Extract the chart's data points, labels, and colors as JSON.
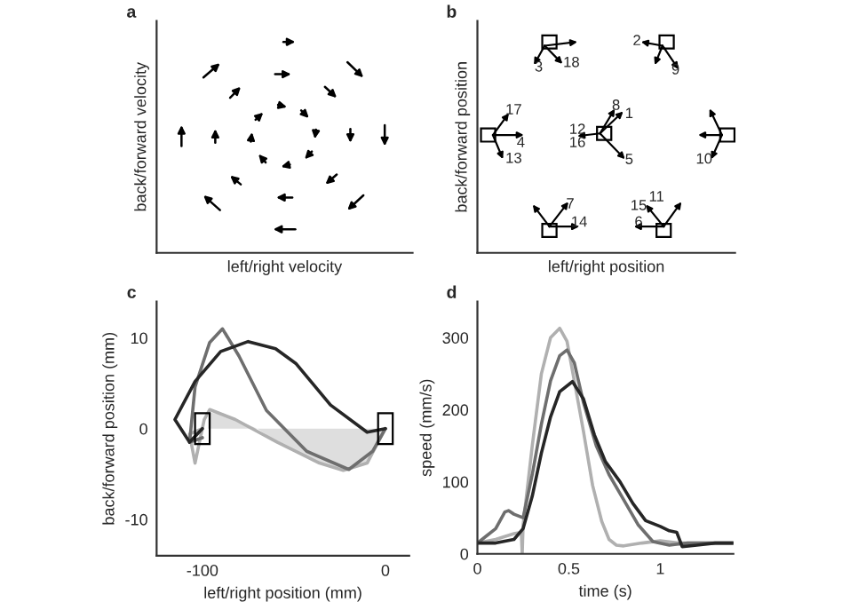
{
  "chart_data": [
    {
      "type": "other",
      "title": "a",
      "xlabel": "left/right velocity",
      "ylabel": "back/forward velocity"
    },
    {
      "type": "other",
      "title": "b",
      "xlabel": "left/right position",
      "ylabel": "back/forward position",
      "annotations": [
        "3",
        "18",
        "2",
        "9",
        "17",
        "4",
        "13",
        "8",
        "1",
        "12",
        "16",
        "5",
        "10",
        "7",
        "14",
        "15",
        "11",
        "6"
      ]
    },
    {
      "type": "line",
      "title": "c",
      "xlabel": "left/right position (mm)",
      "ylabel": "back/forward position (mm)",
      "xlim": [
        -125,
        13
      ],
      "ylim": [
        -14,
        14
      ],
      "xticks": [
        -100,
        0
      ],
      "yticks": [
        -10,
        0,
        10
      ],
      "series": [
        {
          "type": "area",
          "color": "#dedede",
          "x": [
            -97,
            -90,
            -82,
            -70,
            -59,
            -47,
            -36,
            -23,
            -10,
            -4,
            0
          ],
          "values": [
            1.8,
            1.6,
            1,
            0,
            -1.5,
            -2.7,
            -3.8,
            -4.6,
            -3.8,
            -1.5,
            0
          ]
        },
        {
          "color": "#b0b0b0",
          "x": [
            -100,
            -107,
            -104,
            -99,
            -96,
            -82,
            -59,
            -36,
            -23,
            -10,
            -4,
            0
          ],
          "values": [
            0,
            -0.6,
            -3.8,
            1,
            2.1,
            1,
            -1.5,
            -3.8,
            -4.6,
            -3.8,
            -1.5,
            0
          ]
        },
        {
          "color": "#6e6e6e",
          "x": [
            -100,
            -107,
            -104,
            -96,
            -89,
            -80,
            -65,
            -43,
            -20,
            -7,
            0
          ],
          "values": [
            -1,
            -1.5,
            4.6,
            9.5,
            11,
            8,
            2,
            -2.5,
            -4.5,
            -2.5,
            0
          ]
        },
        {
          "color": "#262626",
          "x": [
            -100,
            -107,
            -115,
            -104,
            -90,
            -75,
            -60,
            -49,
            -30,
            -10,
            0
          ],
          "values": [
            0,
            -1.5,
            1,
            5.2,
            8.5,
            9.6,
            8.8,
            7.2,
            2.6,
            -0.4,
            0
          ]
        }
      ]
    },
    {
      "type": "line",
      "title": "d",
      "xlabel": "time (s)",
      "ylabel": "speed (mm/s)",
      "xlim": [
        0,
        1.4
      ],
      "ylim": [
        0,
        350
      ],
      "xticks": [
        0,
        0.5,
        1
      ],
      "yticks": [
        0,
        100,
        200,
        300
      ],
      "series": [
        {
          "color": "#b0b0b0",
          "x": [
            0,
            0.1,
            0.2,
            0.24,
            0.245,
            0.25,
            0.3,
            0.35,
            0.4,
            0.45,
            0.49,
            0.53,
            0.58,
            0.63,
            0.68,
            0.72,
            0.76,
            0.8,
            0.9,
            1.0,
            1.1,
            1.2,
            1.3,
            1.4
          ],
          "values": [
            15,
            20,
            28,
            30,
            0,
            40,
            150,
            250,
            300,
            313,
            295,
            240,
            170,
            95,
            45,
            20,
            12,
            11,
            15,
            18,
            15,
            15,
            15,
            15
          ]
        },
        {
          "color": "#6e6e6e",
          "x": [
            0,
            0.05,
            0.1,
            0.15,
            0.17,
            0.2,
            0.25,
            0.3,
            0.35,
            0.4,
            0.45,
            0.49,
            0.53,
            0.58,
            0.65,
            0.72,
            0.8,
            0.88,
            0.96,
            1.05,
            1.15,
            1.25,
            1.4
          ],
          "values": [
            15,
            25,
            35,
            58,
            60,
            55,
            50,
            110,
            180,
            240,
            275,
            283,
            265,
            210,
            150,
            110,
            75,
            40,
            17,
            12,
            15,
            15,
            15
          ]
        },
        {
          "color": "#262626",
          "x": [
            0,
            0.1,
            0.2,
            0.25,
            0.3,
            0.35,
            0.4,
            0.45,
            0.52,
            0.58,
            0.64,
            0.7,
            0.78,
            0.85,
            0.92,
            1.0,
            1.05,
            1.09,
            1.12,
            1.2,
            1.3,
            1.4
          ],
          "values": [
            15,
            15,
            20,
            35,
            80,
            140,
            190,
            225,
            239,
            215,
            165,
            128,
            100,
            70,
            46,
            38,
            32,
            30,
            10,
            12,
            15,
            15
          ]
        }
      ]
    }
  ]
}
